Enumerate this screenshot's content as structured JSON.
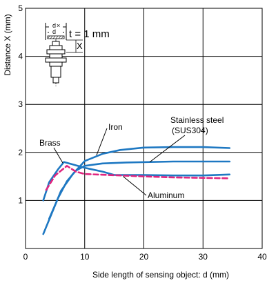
{
  "chart_data": {
    "type": "line",
    "title": "",
    "xlabel": "Side length of sensing object: d (mm)",
    "ylabel": "Distance X (mm)",
    "xlim": [
      0,
      40
    ],
    "ylim": [
      0,
      5
    ],
    "xticks": [
      "0",
      "10",
      "20",
      "30",
      "40"
    ],
    "yticks": [
      "1",
      "2",
      "3",
      "4",
      "5"
    ],
    "grid": true,
    "series": [
      {
        "name": "Iron",
        "color": "#1e78c2",
        "dashed": false,
        "points": [
          [
            3,
            0.3
          ],
          [
            4.5,
            0.75
          ],
          [
            6,
            1.2
          ],
          [
            8,
            1.55
          ],
          [
            10,
            1.82
          ],
          [
            13,
            1.97
          ],
          [
            16,
            2.05
          ],
          [
            20,
            2.1
          ],
          [
            25,
            2.11
          ],
          [
            30,
            2.11
          ],
          [
            34.5,
            2.09
          ]
        ]
      },
      {
        "name": "Stainless steel (SUS304)",
        "color": "#1e78c2",
        "dashed": false,
        "points": [
          [
            4,
            0.62
          ],
          [
            5.5,
            1.05
          ],
          [
            7,
            1.4
          ],
          [
            8.5,
            1.62
          ],
          [
            10,
            1.72
          ],
          [
            13,
            1.77
          ],
          [
            17,
            1.79
          ],
          [
            25,
            1.81
          ],
          [
            34.5,
            1.81
          ]
        ]
      },
      {
        "name": "Brass",
        "color": "#1e78c2",
        "dashed": false,
        "points": [
          [
            3,
            1.0
          ],
          [
            4,
            1.38
          ],
          [
            5.5,
            1.65
          ],
          [
            6.5,
            1.8
          ],
          [
            8,
            1.75
          ],
          [
            10,
            1.68
          ],
          [
            13,
            1.6
          ],
          [
            15,
            1.53
          ],
          [
            20,
            1.53
          ],
          [
            25,
            1.52
          ],
          [
            30,
            1.52
          ],
          [
            34.5,
            1.54
          ]
        ]
      },
      {
        "name": "Aluminum",
        "color": "#e0257f",
        "dashed": true,
        "points": [
          [
            3.5,
            1.22
          ],
          [
            5,
            1.52
          ],
          [
            7,
            1.72
          ],
          [
            8.5,
            1.6
          ],
          [
            10,
            1.55
          ],
          [
            14,
            1.53
          ],
          [
            20,
            1.5
          ],
          [
            25,
            1.48
          ],
          [
            30,
            1.47
          ],
          [
            34.5,
            1.46
          ]
        ]
      }
    ],
    "annotations": [
      {
        "label": "Brass",
        "target_series": "Brass"
      },
      {
        "label": "Iron",
        "target_series": "Iron"
      },
      {
        "label": "Stainless steel",
        "label2": "(SUS304)",
        "target_series": "Stainless steel (SUS304)"
      },
      {
        "label": "Aluminum",
        "target_series": "Aluminum"
      }
    ],
    "inset": {
      "label_d_top": "d",
      "label_d": "d",
      "label_times": "×",
      "label_t": "t = 1 mm",
      "label_x": "X"
    }
  }
}
